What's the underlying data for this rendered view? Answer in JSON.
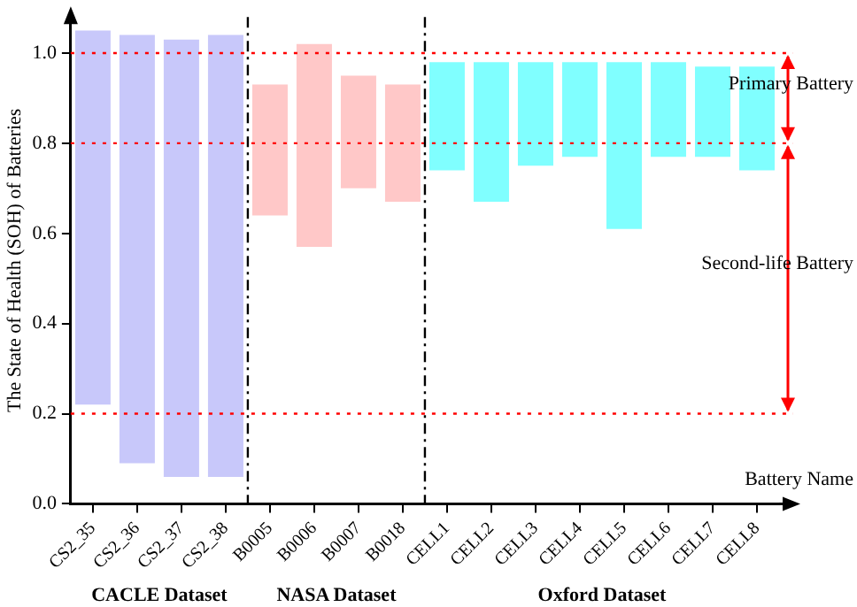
{
  "chart_data": {
    "type": "bar",
    "ylabel": "The State of Health (SOH) of Batteries",
    "xlabel": "Battery Name",
    "categories": [
      "CS2_35",
      "CS2_36",
      "CS2_37",
      "CS2_38",
      "B0005",
      "B0006",
      "B0007",
      "B0018",
      "CELL1",
      "CELL2",
      "CELL3",
      "CELL4",
      "CELL5",
      "CELL6",
      "CELL7",
      "CELL8"
    ],
    "base": [
      0.22,
      0.09,
      0.06,
      0.06,
      0.64,
      0.57,
      0.7,
      0.67,
      0.74,
      0.67,
      0.75,
      0.77,
      0.61,
      0.77,
      0.77,
      0.74
    ],
    "values": [
      0.83,
      0.95,
      0.97,
      0.98,
      0.29,
      0.45,
      0.25,
      0.26,
      0.24,
      0.31,
      0.23,
      0.21,
      0.37,
      0.21,
      0.2,
      0.23
    ],
    "colors": [
      "#c8c8fa",
      "#c8c8fa",
      "#c8c8fa",
      "#c8c8fa",
      "#ffc8c8",
      "#ffc8c8",
      "#ffc8c8",
      "#ffc8c8",
      "#80ffff",
      "#80ffff",
      "#80ffff",
      "#80ffff",
      "#80ffff",
      "#80ffff",
      "#80ffff",
      "#80ffff"
    ],
    "ylim": [
      0,
      1.08
    ],
    "yticks": [
      {
        "value": 0,
        "label": "0.0"
      },
      {
        "value": 0.2,
        "label": "0.2"
      },
      {
        "value": 0.4,
        "label": "0.4"
      },
      {
        "value": 0.6,
        "label": "0.6"
      },
      {
        "value": 0.8,
        "label": "0.8"
      },
      {
        "value": 1,
        "label": "1.0"
      }
    ],
    "ref_lines": [
      {
        "axis": "y",
        "value": 1,
        "color": "#ff0000",
        "line_style": "dotted"
      },
      {
        "axis": "y",
        "value": 0.8,
        "color": "#ff0000",
        "line_style": "dotted"
      },
      {
        "axis": "y",
        "value": 0.2,
        "color": "#ff0000",
        "line_style": "dotted"
      }
    ],
    "annotations": [
      "CACLE Dataset",
      "NASA Dataset",
      "Oxford Dataset",
      "Primary Battery",
      "Second-life Battery"
    ],
    "grid": false,
    "legend": false
  }
}
